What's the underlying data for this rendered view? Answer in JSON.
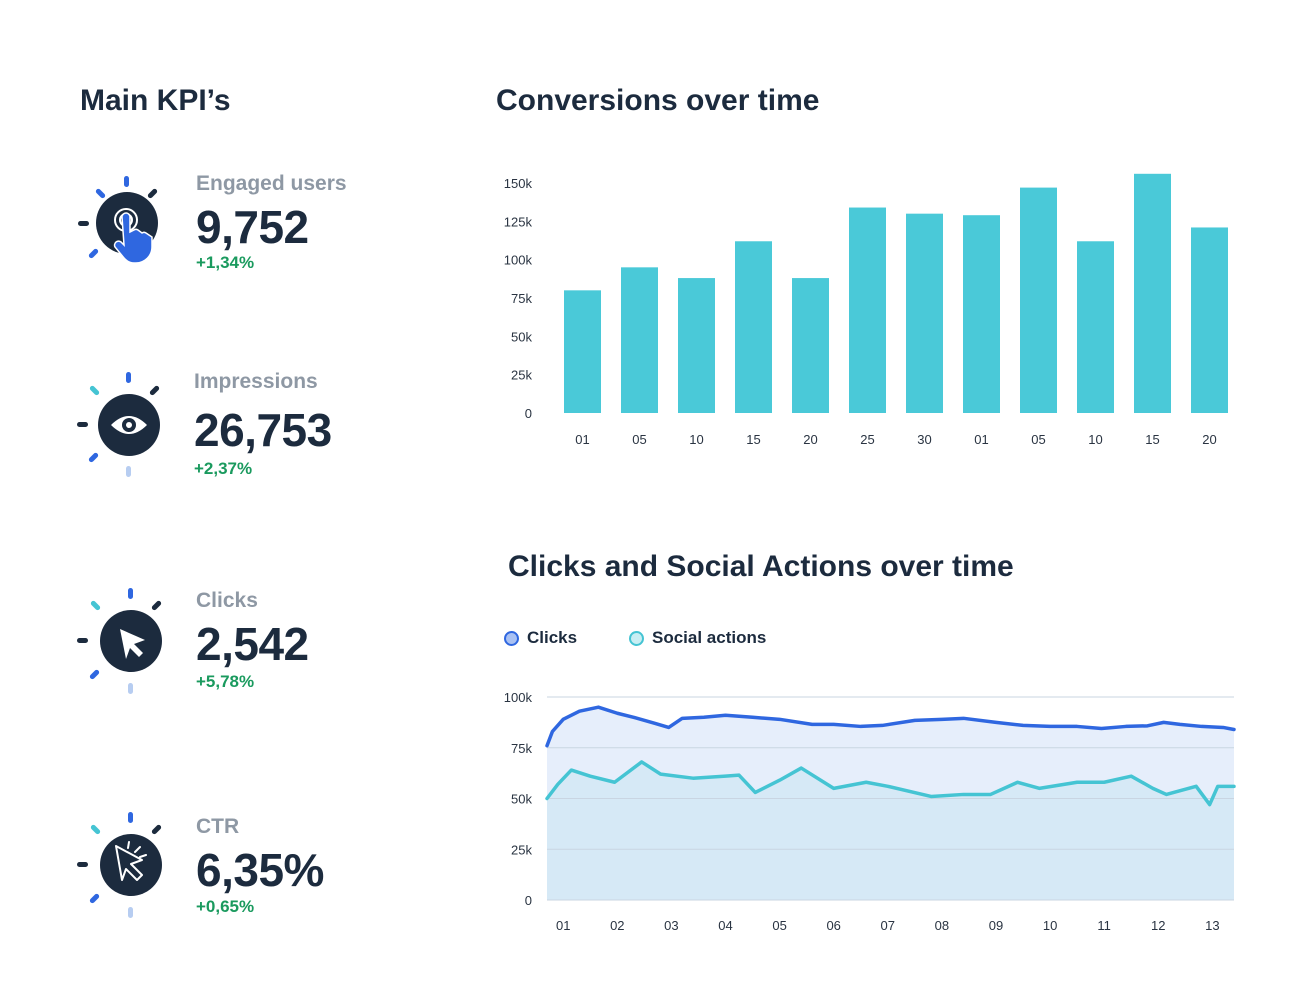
{
  "kpi_section": {
    "title": "Main KPI’s",
    "items": [
      {
        "label": "Engaged users",
        "value": "9,752",
        "delta": "+1,34%",
        "icon": "tap-hand-icon"
      },
      {
        "label": "Impressions",
        "value": "26,753",
        "delta": "+2,37%",
        "icon": "eye-icon"
      },
      {
        "label": "Clicks",
        "value": "2,542",
        "delta": "+5,78%",
        "icon": "cursor-arrow-icon"
      },
      {
        "label": "CTR",
        "value": "6,35%",
        "delta": "+0,65%",
        "icon": "cursor-click-icon"
      }
    ]
  },
  "colors": {
    "bar": "#4ac9d8",
    "clicks_line": "#2f67e0",
    "social_line": "#45c4d3",
    "clicks_area": "#e6eefb",
    "social_area": "#d6e9f6",
    "positive": "#1a9a5e",
    "dark": "#1c2b3e"
  },
  "chart_data": [
    {
      "type": "bar",
      "title": "Conversions over time",
      "categories": [
        "01",
        "05",
        "10",
        "15",
        "20",
        "25",
        "30",
        "01",
        "05",
        "10",
        "15",
        "20"
      ],
      "values": [
        80000,
        95000,
        88000,
        112000,
        88000,
        134000,
        130000,
        129000,
        147000,
        112000,
        156000,
        121000
      ],
      "ylim": [
        0,
        150000
      ],
      "yticks": [
        "0",
        "25k",
        "50k",
        "75k",
        "100k",
        "125k",
        "150k"
      ],
      "xlabel": "",
      "ylabel": ""
    },
    {
      "type": "area",
      "title": "Clicks and Social Actions over time",
      "categories": [
        "01",
        "02",
        "03",
        "04",
        "05",
        "06",
        "07",
        "08",
        "09",
        "10",
        "11",
        "12",
        "13"
      ],
      "x_range": [
        0.7,
        13.4
      ],
      "ylim": [
        0,
        100000
      ],
      "yticks": [
        "0",
        "25k",
        "50k",
        "75k",
        "100k"
      ],
      "legend": [
        "Clicks",
        "Social actions"
      ],
      "series": [
        {
          "name": "Clicks",
          "points": [
            [
              0.7,
              76000
            ],
            [
              0.8,
              83000
            ],
            [
              1.0,
              89000
            ],
            [
              1.3,
              93000
            ],
            [
              1.65,
              95000
            ],
            [
              2.0,
              92000
            ],
            [
              2.3,
              90000
            ],
            [
              2.7,
              87000
            ],
            [
              2.95,
              85000
            ],
            [
              3.2,
              89500
            ],
            [
              3.6,
              90000
            ],
            [
              4.0,
              91000
            ],
            [
              4.5,
              90000
            ],
            [
              5.0,
              89000
            ],
            [
              5.6,
              86500
            ],
            [
              6.0,
              86500
            ],
            [
              6.5,
              85500
            ],
            [
              6.9,
              86000
            ],
            [
              7.5,
              88500
            ],
            [
              8.0,
              89000
            ],
            [
              8.4,
              89500
            ],
            [
              9.0,
              87500
            ],
            [
              9.5,
              86000
            ],
            [
              10.0,
              85500
            ],
            [
              10.5,
              85500
            ],
            [
              10.95,
              84500
            ],
            [
              11.4,
              85500
            ],
            [
              11.8,
              85800
            ],
            [
              12.1,
              87500
            ],
            [
              12.4,
              86500
            ],
            [
              12.8,
              85500
            ],
            [
              13.2,
              85000
            ],
            [
              13.4,
              84000
            ]
          ]
        },
        {
          "name": "Social actions",
          "points": [
            [
              0.7,
              50000
            ],
            [
              0.9,
              57000
            ],
            [
              1.15,
              64000
            ],
            [
              1.5,
              61000
            ],
            [
              1.95,
              58000
            ],
            [
              2.45,
              68000
            ],
            [
              2.8,
              62000
            ],
            [
              3.4,
              60000
            ],
            [
              4.0,
              61000
            ],
            [
              4.25,
              61500
            ],
            [
              4.55,
              53000
            ],
            [
              5.0,
              59000
            ],
            [
              5.4,
              65000
            ],
            [
              6.0,
              55000
            ],
            [
              6.6,
              58000
            ],
            [
              7.0,
              56000
            ],
            [
              7.8,
              51000
            ],
            [
              8.4,
              52000
            ],
            [
              8.9,
              52000
            ],
            [
              9.4,
              58000
            ],
            [
              9.8,
              55000
            ],
            [
              10.5,
              58000
            ],
            [
              11.0,
              58000
            ],
            [
              11.5,
              61000
            ],
            [
              11.9,
              55000
            ],
            [
              12.15,
              52000
            ],
            [
              12.7,
              56000
            ],
            [
              12.95,
              47000
            ],
            [
              13.1,
              56000
            ],
            [
              13.4,
              56000
            ]
          ]
        }
      ]
    }
  ]
}
